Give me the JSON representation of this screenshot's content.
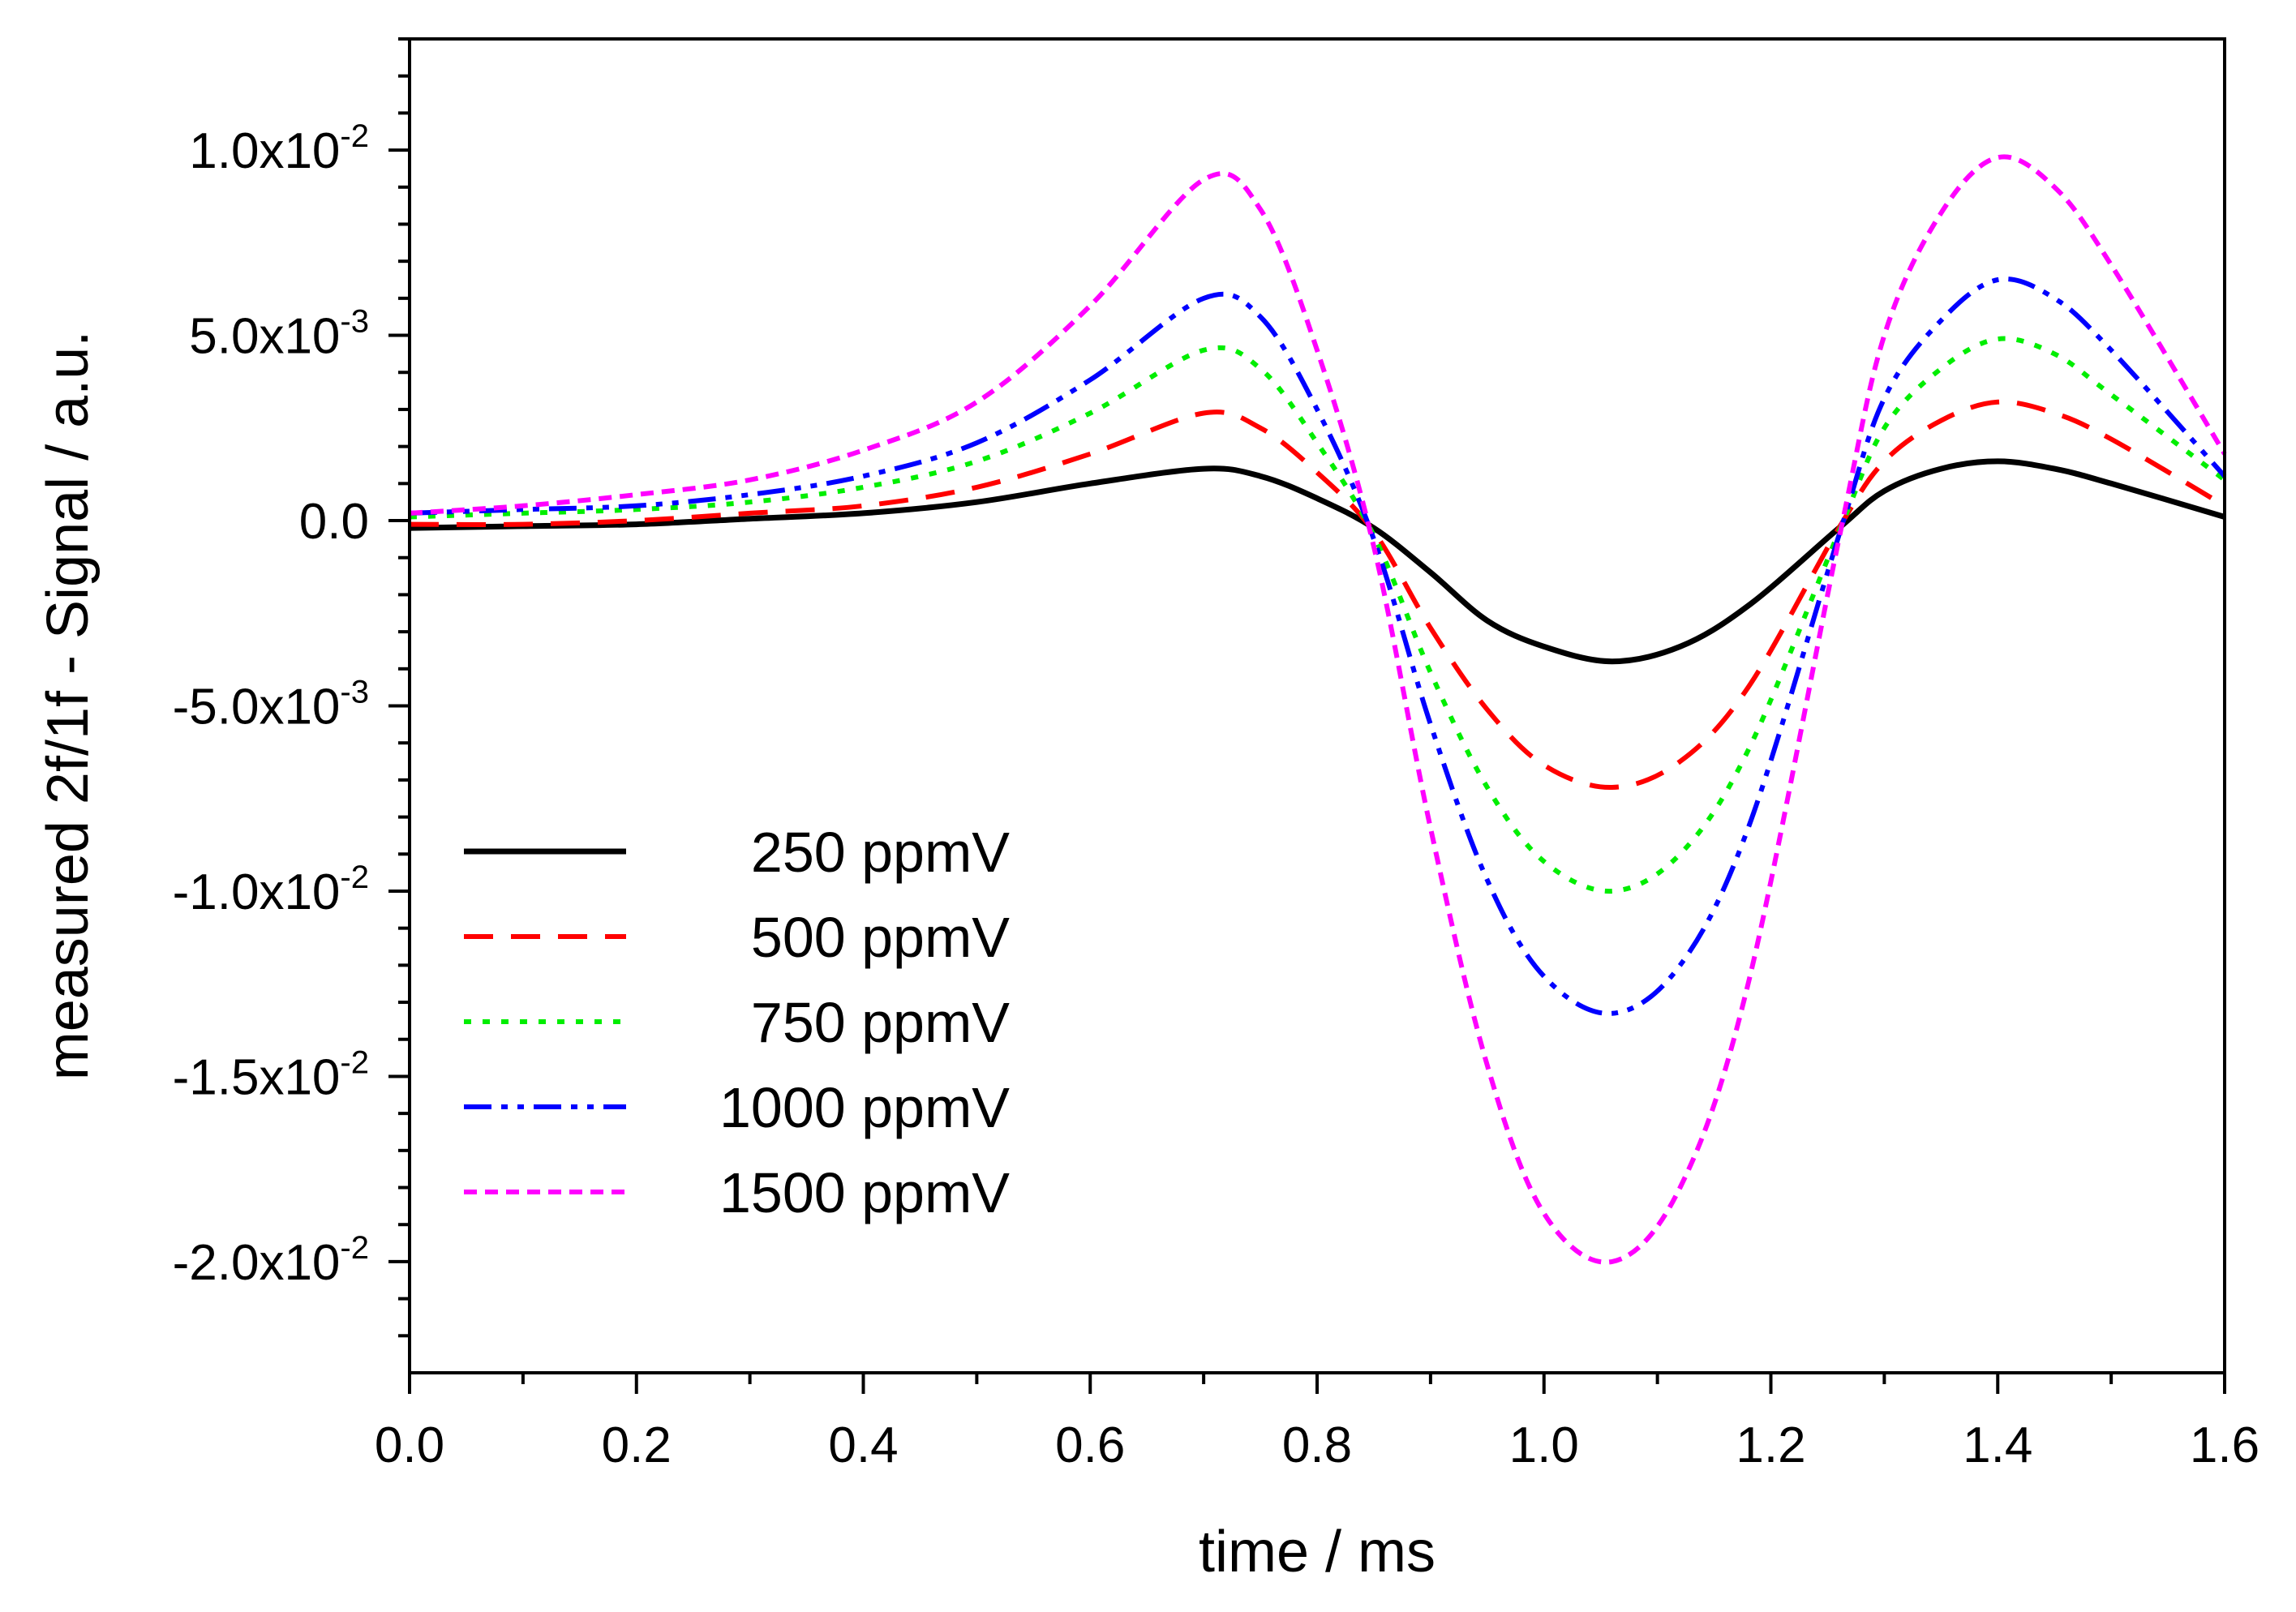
{
  "chart_data": {
    "type": "line",
    "title": "",
    "xlabel": "time / ms",
    "ylabel": "measured 2f/1f - Signal / a.u.",
    "xlim": [
      0,
      1.6
    ],
    "ylim": [
      -0.023,
      0.013
    ],
    "grid": false,
    "legend_position": "bottom-left",
    "x_ticks": [
      0,
      0.2,
      0.4,
      0.6,
      0.8,
      1.0,
      1.2,
      1.4,
      1.6
    ],
    "x_tick_labels": [
      "0.0",
      "0.2",
      "0.4",
      "0.6",
      "0.8",
      "1.0",
      "1.2",
      "1.4",
      "1.6"
    ],
    "y_ticks": [
      {
        "value": 0.01,
        "mantissa": "1.0x10",
        "exponent": "-2"
      },
      {
        "value": 0.005,
        "mantissa": "5.0x10",
        "exponent": "-3"
      },
      {
        "value": 0.0,
        "mantissa": "0.0",
        "exponent": ""
      },
      {
        "value": -0.005,
        "mantissa": "-5.0x10",
        "exponent": "-3"
      },
      {
        "value": -0.01,
        "mantissa": "-1.0x10",
        "exponent": "-2"
      },
      {
        "value": -0.015,
        "mantissa": "-1.5x10",
        "exponent": "-2"
      },
      {
        "value": -0.02,
        "mantissa": "-2.0x10",
        "exponent": "-2"
      }
    ],
    "x": [
      0.0,
      0.1,
      0.2,
      0.3,
      0.4,
      0.5,
      0.6,
      0.7,
      0.75,
      0.8,
      0.85,
      0.9,
      0.95,
      1.0,
      1.06,
      1.12,
      1.18,
      1.26,
      1.3,
      1.35,
      1.4,
      1.45,
      1.5,
      1.6
    ],
    "series": [
      {
        "name": "250 ppmV",
        "color": "#000000",
        "dash": "solid",
        "values": [
          -0.0002,
          -0.00015,
          -0.0001,
          5e-05,
          0.0002,
          0.0005,
          0.001,
          0.0014,
          0.0012,
          0.0006,
          -0.0002,
          -0.0014,
          -0.0027,
          -0.0034,
          -0.0038,
          -0.0034,
          -0.0023,
          -0.0002,
          0.0008,
          0.0014,
          0.0016,
          0.0014,
          0.001,
          0.0001
        ]
      },
      {
        "name": "500 ppmV",
        "color": "#ff0000",
        "dash": "dashed",
        "values": [
          -0.0001,
          -0.0001,
          0.0,
          0.0002,
          0.0004,
          0.0009,
          0.0018,
          0.0029,
          0.0025,
          0.0013,
          -0.0003,
          -0.0029,
          -0.0051,
          -0.0066,
          -0.0072,
          -0.0065,
          -0.0045,
          -0.0002,
          0.0016,
          0.0027,
          0.0032,
          0.0029,
          0.0022,
          0.0004
        ]
      },
      {
        "name": "750 ppmV",
        "color": "#00ee00",
        "dash": "dotted",
        "values": [
          0.0001,
          0.0002,
          0.0003,
          0.0005,
          0.0009,
          0.0016,
          0.0029,
          0.0046,
          0.0041,
          0.0021,
          -0.0004,
          -0.0041,
          -0.0072,
          -0.0092,
          -0.01,
          -0.009,
          -0.0062,
          -0.0003,
          0.0025,
          0.0041,
          0.0049,
          0.0045,
          0.0034,
          0.0011
        ]
      },
      {
        "name": "1000 ppmV",
        "color": "#0000ff",
        "dash": "dashdot",
        "values": [
          0.0002,
          0.0003,
          0.0004,
          0.0007,
          0.0012,
          0.0021,
          0.0038,
          0.006,
          0.0055,
          0.003,
          -0.0005,
          -0.0055,
          -0.0097,
          -0.0123,
          -0.0133,
          -0.012,
          -0.0083,
          -0.0004,
          0.0033,
          0.0054,
          0.0065,
          0.006,
          0.0046,
          0.0012
        ]
      },
      {
        "name": "1500 ppmV",
        "color": "#ff00ff",
        "dash": "shortdash",
        "values": [
          0.0002,
          0.0004,
          0.0007,
          0.0011,
          0.0019,
          0.0032,
          0.0058,
          0.0092,
          0.0084,
          0.0046,
          -0.0007,
          -0.0083,
          -0.0147,
          -0.0187,
          -0.02,
          -0.018,
          -0.0125,
          -0.0005,
          0.005,
          0.0083,
          0.0098,
          0.009,
          0.0069,
          0.0018
        ]
      }
    ]
  }
}
